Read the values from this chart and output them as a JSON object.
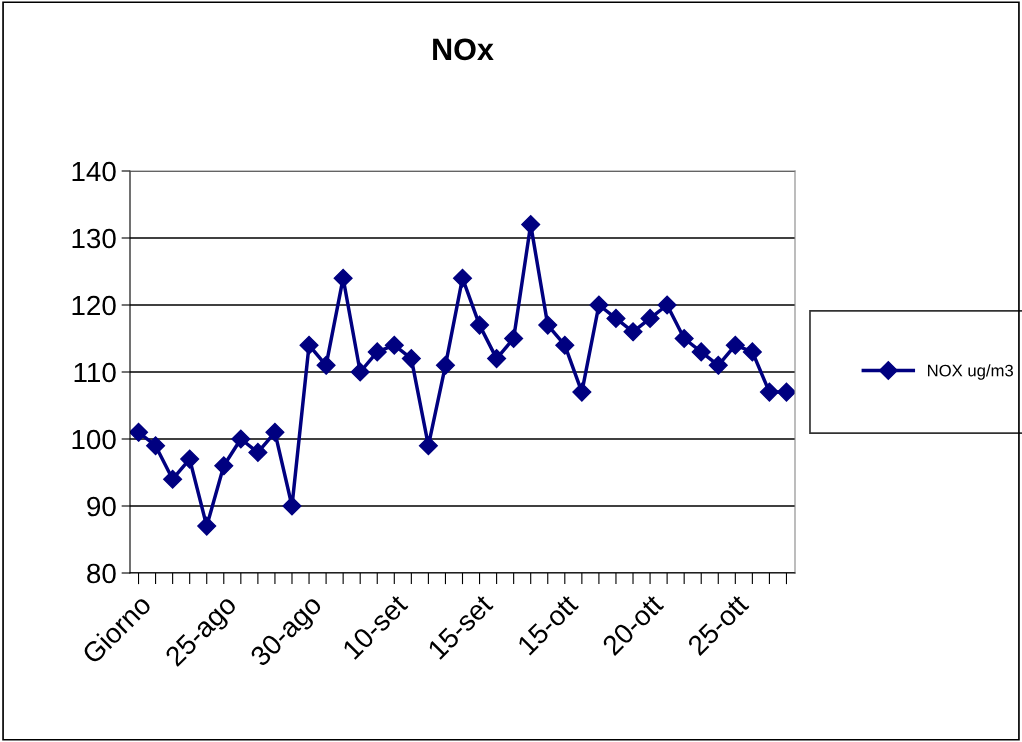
{
  "chart_data": {
    "type": "line",
    "title": "NOx",
    "categories": [
      "Giorno",
      null,
      null,
      null,
      null,
      "25-ago",
      null,
      null,
      null,
      null,
      "30-ago",
      null,
      null,
      null,
      null,
      "10-set",
      null,
      null,
      null,
      null,
      "15-set",
      null,
      null,
      null,
      null,
      "15-ott",
      null,
      null,
      null,
      null,
      "20-ott",
      null,
      null,
      null,
      null,
      "25-ott",
      null,
      null,
      null
    ],
    "series": [
      {
        "name": "NOX ug/m3",
        "color": "#000080",
        "values": [
          101,
          99,
          94,
          97,
          87,
          96,
          100,
          98,
          101,
          90,
          114,
          111,
          124,
          110,
          113,
          114,
          112,
          99,
          111,
          124,
          117,
          112,
          115,
          132,
          117,
          114,
          107,
          120,
          118,
          116,
          118,
          120,
          115,
          113,
          111,
          114,
          113,
          107,
          107
        ]
      }
    ],
    "ylim": [
      80,
      140
    ],
    "yticks": [
      80,
      90,
      100,
      110,
      120,
      130,
      140
    ],
    "grid": "y",
    "legend": "right",
    "marker": "diamond",
    "line_style": "solid"
  }
}
